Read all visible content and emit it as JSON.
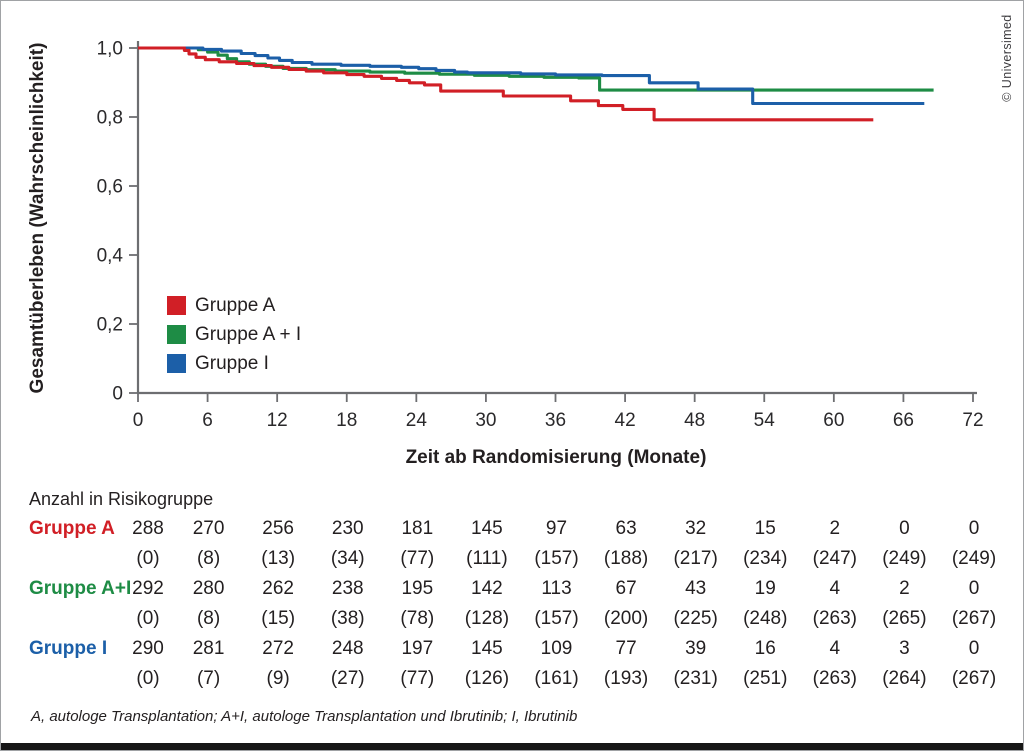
{
  "copyright": "© Universimed",
  "footnote": "A, autologe Transplantation; A+I, autologe Transplantation und Ibrutinib; I, Ibrutinib",
  "legend": {
    "items": [
      {
        "label": "Gruppe A",
        "color": "#d11f26"
      },
      {
        "label": "Gruppe A + I",
        "color": "#1e8c45"
      },
      {
        "label": "Gruppe I",
        "color": "#1c5fa8"
      }
    ]
  },
  "risk_table": {
    "title": "Anzahl in Risikogruppe",
    "rows": [
      {
        "label": "Gruppe A",
        "color": "#d11f26",
        "at_risk": [
          288,
          270,
          256,
          230,
          181,
          145,
          97,
          63,
          32,
          15,
          2,
          0,
          0
        ],
        "paren": [
          "(0)",
          "(8)",
          "(13)",
          "(34)",
          "(77)",
          "(111)",
          "(157)",
          "(188)",
          "(217)",
          "(234)",
          "(247)",
          "(249)",
          "(249)"
        ]
      },
      {
        "label": "Gruppe A+I",
        "color": "#1e8c45",
        "at_risk": [
          292,
          280,
          262,
          238,
          195,
          142,
          113,
          67,
          43,
          19,
          4,
          2,
          0
        ],
        "paren": [
          "(0)",
          "(8)",
          "(15)",
          "(38)",
          "(78)",
          "(128)",
          "(157)",
          "(200)",
          "(225)",
          "(248)",
          "(263)",
          "(265)",
          "(267)"
        ]
      },
      {
        "label": "Gruppe I",
        "color": "#1c5fa8",
        "at_risk": [
          290,
          281,
          272,
          248,
          197,
          145,
          109,
          77,
          39,
          16,
          4,
          3,
          0
        ],
        "paren": [
          "(0)",
          "(7)",
          "(9)",
          "(27)",
          "(77)",
          "(126)",
          "(161)",
          "(193)",
          "(231)",
          "(251)",
          "(263)",
          "(264)",
          "(267)"
        ]
      }
    ]
  },
  "chart_data": {
    "type": "line",
    "subtype": "kaplan-meier-step",
    "title": "",
    "xlabel": "Zeit ab Randomisierung (Monate)",
    "ylabel": "Gesamtüberleben (Wahrscheinlichkeit)",
    "xlim": [
      0,
      72
    ],
    "ylim": [
      0,
      1.0
    ],
    "grid": false,
    "legend_position": "inside-lower-left",
    "xticks": [
      0,
      6,
      12,
      18,
      24,
      30,
      36,
      42,
      48,
      54,
      60,
      66,
      72
    ],
    "yticks": [
      {
        "v": 1.0,
        "label": "1,0"
      },
      {
        "v": 0.8,
        "label": "0,8"
      },
      {
        "v": 0.6,
        "label": "0,6"
      },
      {
        "v": 0.4,
        "label": "0,4"
      },
      {
        "v": 0.2,
        "label": "0,2"
      },
      {
        "v": 0.0,
        "label": "0"
      }
    ],
    "series": [
      {
        "name": "Gruppe A + I",
        "color": "#1e8c45",
        "points": [
          [
            0,
            1.0
          ],
          [
            5.2,
            0.995
          ],
          [
            6.0,
            0.988
          ],
          [
            6.9,
            0.979
          ],
          [
            7.7,
            0.969
          ],
          [
            8.5,
            0.96
          ],
          [
            9.6,
            0.953
          ],
          [
            11.0,
            0.947
          ],
          [
            12.5,
            0.941
          ],
          [
            14.5,
            0.937
          ],
          [
            17.0,
            0.933
          ],
          [
            20.0,
            0.93
          ],
          [
            23.0,
            0.927
          ],
          [
            26.0,
            0.924
          ],
          [
            29.0,
            0.921
          ],
          [
            32.0,
            0.918
          ],
          [
            35.0,
            0.915
          ],
          [
            38.0,
            0.913
          ],
          [
            39.8,
            0.878
          ],
          [
            68.6,
            0.878
          ]
        ]
      },
      {
        "name": "Gruppe I",
        "color": "#1c5fa8",
        "points": [
          [
            0,
            1.0
          ],
          [
            5.6,
            0.996
          ],
          [
            7.2,
            0.991
          ],
          [
            8.9,
            0.984
          ],
          [
            10.1,
            0.978
          ],
          [
            11.2,
            0.971
          ],
          [
            12.2,
            0.964
          ],
          [
            13.3,
            0.958
          ],
          [
            15.0,
            0.953
          ],
          [
            17.5,
            0.95
          ],
          [
            20.0,
            0.947
          ],
          [
            22.7,
            0.944
          ],
          [
            24.2,
            0.94
          ],
          [
            25.7,
            0.935
          ],
          [
            27.3,
            0.93
          ],
          [
            28.4,
            0.928
          ],
          [
            33.0,
            0.925
          ],
          [
            36.0,
            0.922
          ],
          [
            40.0,
            0.92
          ],
          [
            44.1,
            0.899
          ],
          [
            48.3,
            0.881
          ],
          [
            53.0,
            0.839
          ],
          [
            67.8,
            0.839
          ]
        ]
      },
      {
        "name": "Gruppe A",
        "color": "#d11f26",
        "points": [
          [
            0,
            1.0
          ],
          [
            4.0,
            0.993
          ],
          [
            4.4,
            0.983
          ],
          [
            5.0,
            0.973
          ],
          [
            5.8,
            0.966
          ],
          [
            7.0,
            0.96
          ],
          [
            8.5,
            0.955
          ],
          [
            10.0,
            0.949
          ],
          [
            11.5,
            0.944
          ],
          [
            13.0,
            0.938
          ],
          [
            14.5,
            0.933
          ],
          [
            16.0,
            0.928
          ],
          [
            18.0,
            0.923
          ],
          [
            19.5,
            0.918
          ],
          [
            21.0,
            0.912
          ],
          [
            22.3,
            0.906
          ],
          [
            23.4,
            0.899
          ],
          [
            24.7,
            0.893
          ],
          [
            26.1,
            0.875
          ],
          [
            31.5,
            0.861
          ],
          [
            37.3,
            0.847
          ],
          [
            39.7,
            0.833
          ],
          [
            41.8,
            0.822
          ],
          [
            44.5,
            0.792
          ],
          [
            63.4,
            0.792
          ]
        ]
      }
    ]
  }
}
